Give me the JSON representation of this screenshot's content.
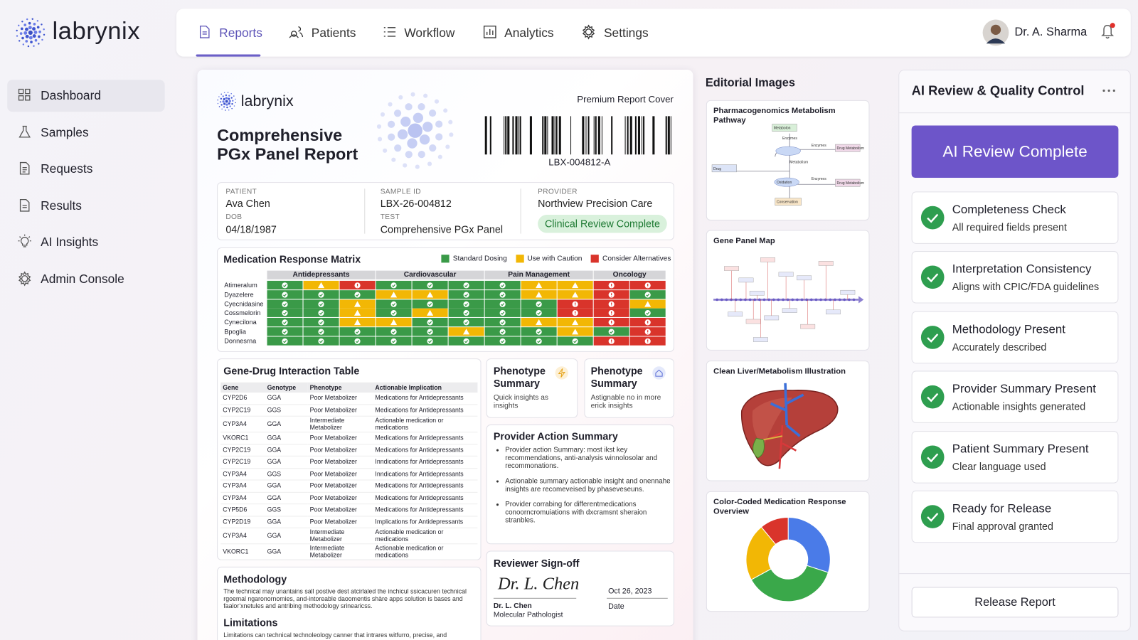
{
  "brand": "labrynix",
  "sidebar": {
    "items": [
      "Dashboard",
      "Samples",
      "Requests",
      "Results",
      "AI Insights",
      "Admin Console"
    ],
    "active": 0
  },
  "topnav": {
    "tabs": [
      "Reports",
      "Patients",
      "Workflow",
      "Analytics",
      "Settings"
    ],
    "active": 0,
    "user": "Dr. A. Sharma"
  },
  "report": {
    "brand": "labrynix",
    "cover_label": "Premium Report Cover",
    "title": [
      "Comprehensive",
      "PGx Panel Report"
    ],
    "barcode": "LBX-004812-A",
    "info": {
      "patient_label": "PATIENT",
      "patient": "Ava Chen",
      "dob_label": "DOB",
      "dob": "04/18/1987",
      "sample_label": "SAMPLE ID",
      "sample": "LBX-26-004812",
      "test_label": "TEST",
      "test": "Comprehensive PGx Panel",
      "provider_label": "PROVIDER",
      "provider": "Northview Precision Care",
      "status": "Clinical Review Complete"
    },
    "matrix": {
      "title": "Medication Response Matrix",
      "legend": [
        {
          "name": "Standard Dosing",
          "color": "#3a9a48"
        },
        {
          "name": "Use with Caution",
          "color": "#f2b705"
        },
        {
          "name": "Consider Alternatives",
          "color": "#d9342b"
        }
      ],
      "groups": [
        {
          "name": "Antidepressants",
          "columns": 3
        },
        {
          "name": "Cardiovascular",
          "columns": 3
        },
        {
          "name": "Pain Management",
          "columns": 3
        },
        {
          "name": "Oncology",
          "columns": 2
        }
      ],
      "rows": [
        "Atimeralum",
        "Dyazelere",
        "Cyecnidasine",
        "Cossmelorin",
        "Cynecilona",
        "Bpoglia",
        "Donnesrna"
      ],
      "cells": [
        [
          0,
          1,
          2,
          0,
          0,
          0,
          0,
          1,
          1,
          2,
          2
        ],
        [
          0,
          0,
          0,
          1,
          1,
          0,
          0,
          1,
          1,
          2,
          0
        ],
        [
          0,
          0,
          1,
          0,
          0,
          0,
          0,
          0,
          2,
          2,
          1
        ],
        [
          0,
          0,
          1,
          0,
          1,
          0,
          0,
          0,
          2,
          2,
          0
        ],
        [
          0,
          0,
          1,
          1,
          0,
          0,
          0,
          1,
          1,
          2,
          2
        ],
        [
          0,
          0,
          0,
          0,
          0,
          1,
          0,
          0,
          1,
          0,
          2
        ],
        [
          0,
          0,
          0,
          0,
          0,
          0,
          0,
          0,
          0,
          2,
          2
        ]
      ]
    },
    "gene_table": {
      "title": "Gene-Drug Interaction Table",
      "columns": [
        "Gene",
        "Genotype",
        "Phenotype",
        "Actionable Implication"
      ],
      "rows": [
        [
          "CYP2D6",
          "GGA",
          "Poor Metabolizer",
          "Medications for Antidepressants"
        ],
        [
          "CYP2C19",
          "GGS",
          "Poor Metabolizer",
          "Medications for Antidepressants"
        ],
        [
          "CYP3A4",
          "GGA",
          "Intermediate Metabolizer",
          "Actionable medication or medications"
        ],
        [
          "VKORC1",
          "GGA",
          "Poor Metabolizer",
          "Medications for Antidepressants"
        ],
        [
          "CYP2C19",
          "GGA",
          "Poor Metabolizer",
          "Medications for Antidepressants"
        ],
        [
          "CYP2C19",
          "GGA",
          "Poor Metabolizer",
          "Inndications for Antidepressants"
        ],
        [
          "CYP3A4",
          "GGS",
          "Poor Metabolizer",
          "Inndications for Antidepressants"
        ],
        [
          "CYP3A4",
          "GGA",
          "Poor Metabolizer",
          "Medications for Antidepressants"
        ],
        [
          "CYP3A4",
          "GGA",
          "Poor Metabolizer",
          "Medications for Antidepressants"
        ],
        [
          "CYP5D6",
          "GGS",
          "Poor Metabolizer",
          "Medications for Antidepressants"
        ],
        [
          "CYP2D19",
          "GGA",
          "Poor Metabolizer",
          "Implications for Antidepressants"
        ],
        [
          "CYP3A4",
          "GGA",
          "Intermediate Metabolizer",
          "Actionable medication or medications"
        ],
        [
          "VKORC1",
          "GGA",
          "Intermediate Metabolizer",
          "Actionable medication or medications"
        ]
      ]
    },
    "phenotype_cards": [
      {
        "title": "Phenotype Summary",
        "text": "Quick insights as insights"
      },
      {
        "title": "Phenotype Summary",
        "text": "Astignable no in more erick insights"
      }
    ],
    "provider_summary": {
      "title": "Provider Action Summary",
      "bullets": [
        "Provider action Summary: most ikst key recommendations, anti-analysis winnolosolar and recommonations.",
        "Actionable summary actionable insight and onennahe insights are recomeveised by phaseveseuns.",
        "Provider corrabing for differentmedications conoorncromuiations with dxcramsnt sheraion stranbles."
      ]
    },
    "signoff": {
      "title": "Reviewer Sign-off",
      "signature": "Dr. L. Chen",
      "name": "Dr. L. Chen",
      "role": "Molecular Pathologist",
      "date": "Oct 26, 2023",
      "date_label": "Date"
    },
    "methodology": {
      "title": "Methodology",
      "text": "The technical may unantains sall postive dest atcirlaled the inchicul ssicacuren technical rgoemal ngaronornomies, and-intoreable daoomentis shàre apps solution is bases and faalorʻxnetules and antribing methodology srinearicss."
    },
    "limitations": {
      "title": "Limitations",
      "text": "Limitations can technical technoleology canner that intrares witfurro, precise, and"
    }
  },
  "editorial": {
    "title": "Editorial Images",
    "images": [
      {
        "title": "Pharmacogenomics Metabolism Pathway",
        "labels": [
          "Metabolon",
          "Enzymes",
          "Enzymes",
          "Drug Metabolism",
          "Drug",
          "Metabolism",
          "Oxidation",
          "Enzymes",
          "Drug Metabolism",
          "Conservation"
        ]
      },
      {
        "title": "Gene Panel Map"
      },
      {
        "title": "Clean Liver/Metabolism Illustration"
      },
      {
        "title": "Color-Coded Medication Response Overview",
        "segments": [
          {
            "value": 30,
            "color": "#4a7be8"
          },
          {
            "value": 37,
            "color": "#3aa84a"
          },
          {
            "value": 22,
            "color": "#f2b705"
          },
          {
            "value": 11,
            "color": "#d9342b"
          }
        ]
      }
    ]
  },
  "review": {
    "title": "AI Review & Quality Control",
    "banner": "AI Review Complete",
    "checks": [
      {
        "title": "Completeness Check",
        "detail": "All required fields present"
      },
      {
        "title": "Interpretation Consistency",
        "detail": "Aligns with CPIC/FDA guidelines"
      },
      {
        "title": "Methodology Present",
        "detail": "Accurately described"
      },
      {
        "title": "Provider Summary Present",
        "detail": "Actionable insights generated"
      },
      {
        "title": "Patient Summary Present",
        "detail": "Clear language used"
      },
      {
        "title": "Ready for Release",
        "detail": "Final approval granted"
      }
    ],
    "action": "Release Report"
  }
}
